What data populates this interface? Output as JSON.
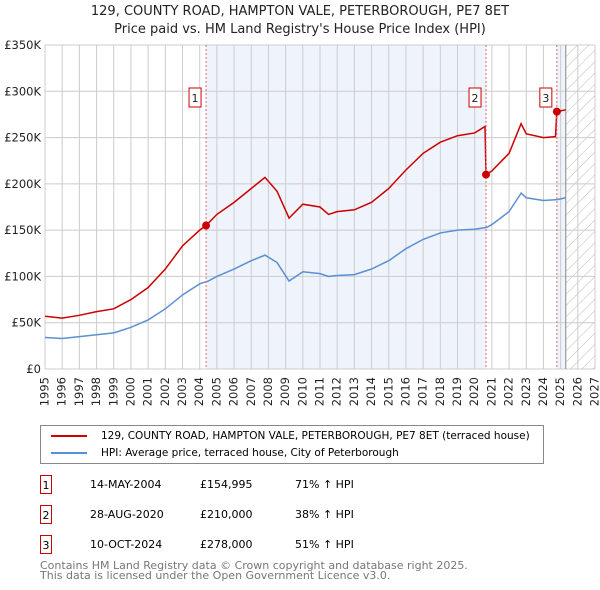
{
  "chart_data": {
    "type": "line",
    "title": "129, COUNTY ROAD, HAMPTON VALE, PETERBOROUGH, PE7 8ET",
    "subtitle": "Price paid vs. HM Land Registry's House Price Index (HPI)",
    "xlim": [
      1995,
      2027
    ],
    "ylim": [
      0,
      350000
    ],
    "yticks": [
      0,
      50000,
      100000,
      150000,
      200000,
      250000,
      300000,
      350000
    ],
    "ytick_labels": [
      "£0",
      "£50K",
      "£100K",
      "£150K",
      "£200K",
      "£250K",
      "£300K",
      "£350K"
    ],
    "xticks": [
      "1995",
      "1996",
      "1997",
      "1998",
      "1999",
      "2000",
      "2001",
      "2002",
      "2003",
      "2004",
      "2005",
      "2006",
      "2007",
      "2008",
      "2009",
      "2010",
      "2011",
      "2012",
      "2013",
      "2014",
      "2015",
      "2016",
      "2017",
      "2018",
      "2019",
      "2020",
      "2021",
      "2022",
      "2023",
      "2024",
      "2025",
      "2026",
      "2027"
    ],
    "series": [
      {
        "name": "129, COUNTY ROAD, HAMPTON VALE, PETERBOROUGH, PE7 8ET (terraced house)",
        "color": "#cc0000",
        "x": [
          1995,
          1996,
          1997,
          1998,
          1999,
          2000,
          2001,
          2002,
          2003,
          2004,
          2004.37,
          2005,
          2006,
          2007,
          2007.8,
          2008.5,
          2009.2,
          2010,
          2011,
          2011.5,
          2012,
          2013,
          2014,
          2015,
          2016,
          2017,
          2018,
          2019,
          2020,
          2020.6,
          2020.66,
          2021,
          2022,
          2022.7,
          2023,
          2024,
          2024.7,
          2024.78,
          2025.3
        ],
        "y": [
          57000,
          55000,
          58000,
          62000,
          65000,
          75000,
          88000,
          108000,
          133000,
          150000,
          154995,
          167000,
          180000,
          195000,
          207000,
          192000,
          163000,
          178000,
          175000,
          167000,
          170000,
          172000,
          180000,
          195000,
          215000,
          233000,
          245000,
          252000,
          255000,
          262000,
          210000,
          214000,
          233000,
          265000,
          254000,
          250000,
          251000,
          278000,
          280000
        ]
      },
      {
        "name": "HPI: Average price, terraced house, City of Peterborough",
        "color": "#5b8fd4",
        "x": [
          1995,
          1996,
          1997,
          1998,
          1999,
          2000,
          2001,
          2002,
          2003,
          2004,
          2004.5,
          2005,
          2006,
          2007,
          2007.8,
          2008.5,
          2009.2,
          2010,
          2011,
          2011.5,
          2012,
          2013,
          2014,
          2015,
          2016,
          2017,
          2018,
          2019,
          2020,
          2020.7,
          2021,
          2022,
          2022.7,
          2023,
          2024,
          2024.8,
          2025.3
        ],
        "y": [
          34000,
          33000,
          35000,
          37000,
          39000,
          45000,
          53000,
          65000,
          80000,
          92000,
          95000,
          100000,
          108000,
          117000,
          123000,
          115000,
          95000,
          105000,
          103000,
          100000,
          101000,
          102000,
          108000,
          117000,
          130000,
          140000,
          147000,
          150000,
          151000,
          153000,
          156000,
          170000,
          190000,
          185000,
          182000,
          183000,
          185000
        ]
      }
    ],
    "sales": [
      {
        "label": "1",
        "x": 2004.37,
        "y": 154995,
        "date": "14-MAY-2004",
        "price": "£154,995",
        "hpi": "71% ↑ HPI"
      },
      {
        "label": "2",
        "x": 2020.66,
        "y": 210000,
        "date": "28-AUG-2020",
        "price": "£210,000",
        "hpi": "38% ↑ HPI"
      },
      {
        "label": "3",
        "x": 2024.78,
        "y": 278000,
        "date": "10-OCT-2024",
        "price": "£278,000",
        "hpi": "51% ↑ HPI"
      }
    ],
    "future_from": 2025.3
  },
  "legend": {
    "red": "129, COUNTY ROAD, HAMPTON VALE, PETERBOROUGH, PE7 8ET (terraced house)",
    "blue": "HPI: Average price, terraced house, City of Peterborough"
  },
  "footer": {
    "line1": "Contains HM Land Registry data © Crown copyright and database right 2025.",
    "line2": "This data is licensed under the Open Government Licence v3.0."
  }
}
